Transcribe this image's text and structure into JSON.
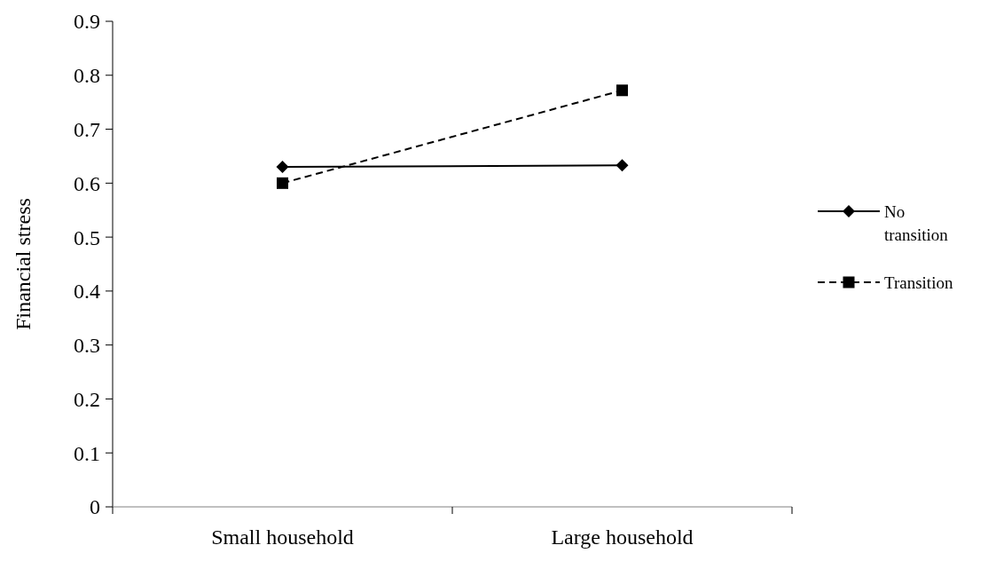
{
  "chart_data": {
    "type": "line",
    "ylabel": "Financial stress",
    "categories": [
      "Small household",
      "Large household"
    ],
    "series": [
      {
        "name": "No transition",
        "color": "#000000",
        "values": [
          0.63,
          0.633
        ],
        "marker": "diamond",
        "line_style": "solid"
      },
      {
        "name": "Transition",
        "color": "#000000",
        "values": [
          0.6,
          0.772
        ],
        "marker": "square",
        "line_style": "dashed"
      }
    ],
    "ylim": [
      0,
      0.9
    ],
    "yticks": [
      0,
      0.1,
      0.2,
      0.3,
      0.4,
      0.5,
      0.6,
      0.7,
      0.8,
      0.9
    ],
    "grid": false,
    "legend": "right"
  }
}
